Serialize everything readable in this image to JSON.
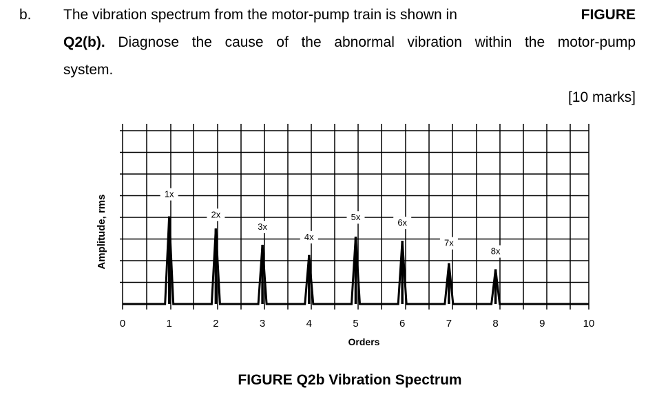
{
  "question": {
    "label": "b.",
    "line1": "The vibration spectrum from the motor-pump train is shown in",
    "line1_figure": "FIGURE",
    "line2_words": [
      "Q2(b).",
      "Diagnose",
      "the",
      "cause",
      "of",
      "the",
      "abnormal",
      "vibration",
      "within",
      "the",
      "motor-pump"
    ],
    "line3": "system.",
    "marks": "[10 marks]"
  },
  "figure_caption": "FIGURE Q2b Vibration Spectrum",
  "chart_data": {
    "type": "line",
    "xlabel": "Orders",
    "ylabel": "Amplitude, rms",
    "xlim": [
      0,
      10
    ],
    "x_ticks": [
      "0",
      "1",
      "2",
      "3",
      "4",
      "5",
      "6",
      "7",
      "8",
      "9",
      "10"
    ],
    "ylim": [
      0,
      8.5
    ],
    "grid": true,
    "peaks": [
      {
        "order": 1,
        "label": "1x",
        "amplitude": 4.3
      },
      {
        "order": 2,
        "label": "2x",
        "amplitude": 3.7
      },
      {
        "order": 3,
        "label": "3x",
        "amplitude": 2.9
      },
      {
        "order": 4,
        "label": "4x",
        "amplitude": 2.4
      },
      {
        "order": 5,
        "label": "5x",
        "amplitude": 3.3
      },
      {
        "order": 6,
        "label": "6x",
        "amplitude": 3.1
      },
      {
        "order": 7,
        "label": "7x",
        "amplitude": 2.0
      },
      {
        "order": 8,
        "label": "8x",
        "amplitude": 1.7
      }
    ],
    "baseline": 0.0
  }
}
